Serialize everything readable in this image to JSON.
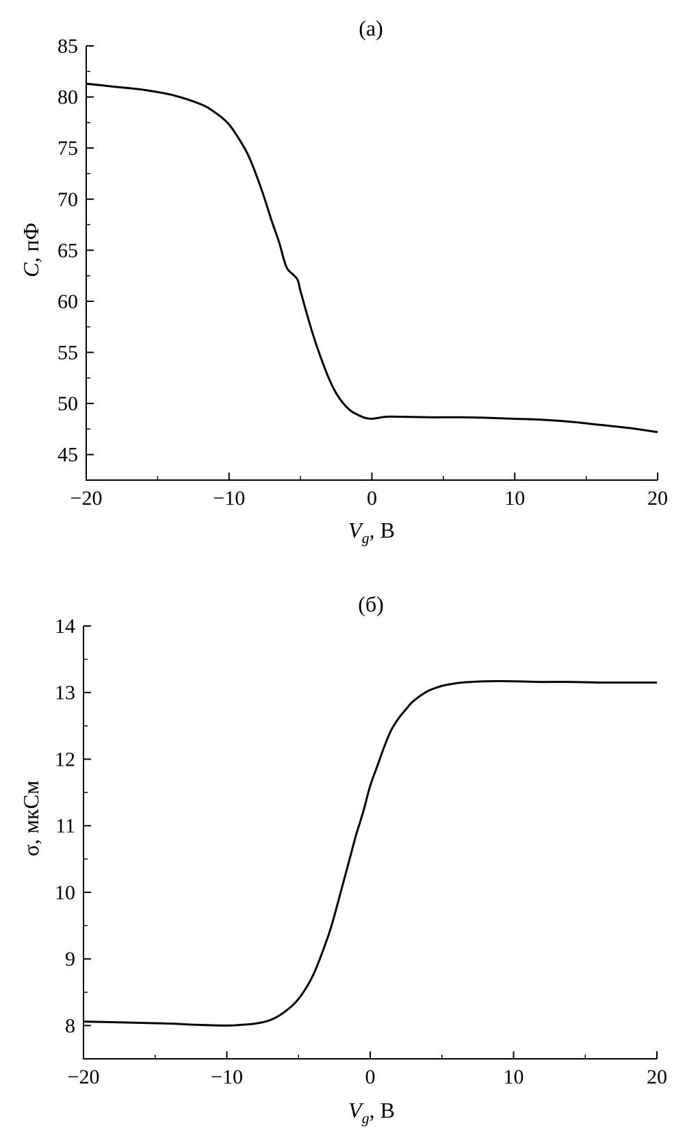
{
  "colors": {
    "line": "#000000",
    "background": "#ffffff"
  },
  "chart_data": [
    {
      "type": "line",
      "title": "(a)",
      "xlabel": {
        "main": "V",
        "sub": "g",
        "rest": ", В"
      },
      "ylabel": {
        "main": "C",
        "rest": ", пФ"
      },
      "xlim": [
        -20,
        20
      ],
      "ylim": [
        42.5,
        85
      ],
      "xticks": [
        -20,
        -10,
        0,
        10,
        20
      ],
      "xtick_labels": [
        "−20",
        "−10",
        "0",
        "10",
        "20"
      ],
      "yticks": [
        45,
        50,
        55,
        60,
        65,
        70,
        75,
        80,
        85
      ],
      "ytick_labels": [
        "45",
        "50",
        "55",
        "60",
        "65",
        "70",
        "75",
        "80",
        "85"
      ],
      "grid": false,
      "series": [
        {
          "x": [
            -20,
            -18,
            -16,
            -14,
            -12,
            -11,
            -10,
            -9,
            -8.5,
            -8,
            -7.5,
            -7,
            -6.5,
            -6,
            -5.5,
            -5.2,
            -5.0,
            -4.8,
            -4.5,
            -4,
            -3.5,
            -3,
            -2.5,
            -2,
            -1.5,
            -1,
            -0.5,
            0,
            1,
            2,
            4,
            6,
            8,
            10,
            12,
            14,
            16,
            18,
            20
          ],
          "y": [
            81.3,
            81.0,
            80.7,
            80.2,
            79.3,
            78.5,
            77.3,
            75.2,
            73.8,
            72.0,
            70.0,
            67.8,
            65.8,
            63.4,
            62.6,
            62.1,
            61.0,
            60.0,
            58.5,
            56.2,
            54.2,
            52.4,
            51.0,
            50.0,
            49.3,
            48.9,
            48.6,
            48.5,
            48.7,
            48.7,
            48.65,
            48.65,
            48.6,
            48.5,
            48.4,
            48.2,
            47.9,
            47.6,
            47.2
          ]
        }
      ]
    },
    {
      "type": "line",
      "title": "(б)",
      "xlabel": {
        "main": "V",
        "sub": "g",
        "rest": ", В"
      },
      "ylabel": {
        "main": "σ",
        "rest": ", мкСм"
      },
      "xlim": [
        -20,
        20
      ],
      "ylim": [
        7.5,
        14
      ],
      "xticks": [
        -20,
        -10,
        0,
        10,
        20
      ],
      "xtick_labels": [
        "−20",
        "−10",
        "0",
        "10",
        "20"
      ],
      "yticks": [
        8,
        9,
        10,
        11,
        12,
        13,
        14
      ],
      "ytick_labels": [
        "8",
        "9",
        "10",
        "11",
        "12",
        "13",
        "14"
      ],
      "grid": false,
      "series": [
        {
          "x": [
            -20,
            -18,
            -16,
            -14,
            -12,
            -10,
            -9,
            -8,
            -7,
            -6,
            -5,
            -4,
            -3,
            -2.5,
            -2,
            -1.5,
            -1,
            -0.5,
            0,
            0.5,
            1,
            1.5,
            2,
            2.5,
            3,
            4,
            5,
            6,
            7,
            8,
            10,
            12,
            14,
            16,
            18,
            20
          ],
          "y": [
            8.06,
            8.05,
            8.04,
            8.03,
            8.01,
            8.0,
            8.01,
            8.03,
            8.08,
            8.2,
            8.4,
            8.75,
            9.3,
            9.65,
            10.05,
            10.45,
            10.85,
            11.2,
            11.6,
            11.9,
            12.2,
            12.45,
            12.62,
            12.75,
            12.87,
            13.02,
            13.1,
            13.14,
            13.16,
            13.17,
            13.17,
            13.16,
            13.16,
            13.15,
            13.15,
            13.15
          ]
        }
      ]
    }
  ]
}
